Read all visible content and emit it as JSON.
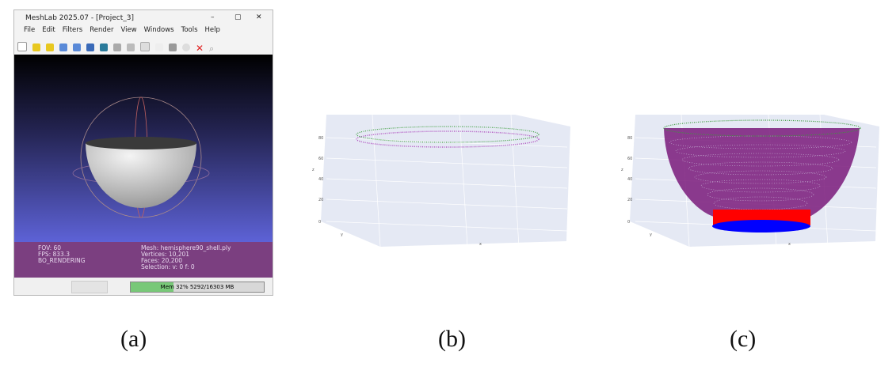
{
  "panel_a": {
    "title": "MeshLab 2025.07 - [Project_3]",
    "window_controls": [
      "–",
      "▢",
      "✕"
    ],
    "menu": [
      "File",
      "Edit",
      "Filters",
      "Render",
      "View",
      "Windows",
      "Tools",
      "Help"
    ],
    "info_left": [
      "FOV: 60",
      "FPS:   833.3",
      "BO_RENDERING"
    ],
    "info_right": [
      "Mesh: hemisphere90_shell.ply",
      "Vertices: 10,201",
      "Faces: 20,200",
      "Selection: v: 0 f: 0"
    ],
    "memory": {
      "label": "Mem 32% 5292/16303 MB",
      "percent": 32
    },
    "colors": {
      "viewport_top": "#000000",
      "viewport_bottom": "#5d62d6",
      "info_bar": "#7b3f80"
    }
  },
  "panel_b": {
    "z_ticks": [
      "0",
      "20",
      "40",
      "60",
      "80"
    ],
    "z_label": "z",
    "x_label": "x",
    "y_label": "y"
  },
  "panel_c": {
    "z_ticks": [
      "0",
      "20",
      "40",
      "60",
      "80"
    ],
    "z_label": "z",
    "x_label": "x",
    "y_label": "y",
    "colors": {
      "shell": "#7a1a7a",
      "rim": "#3a9a3a",
      "side": "#ff0000",
      "base": "#0000ff"
    }
  },
  "captions": [
    "(a)",
    "(b)",
    "(c)"
  ]
}
